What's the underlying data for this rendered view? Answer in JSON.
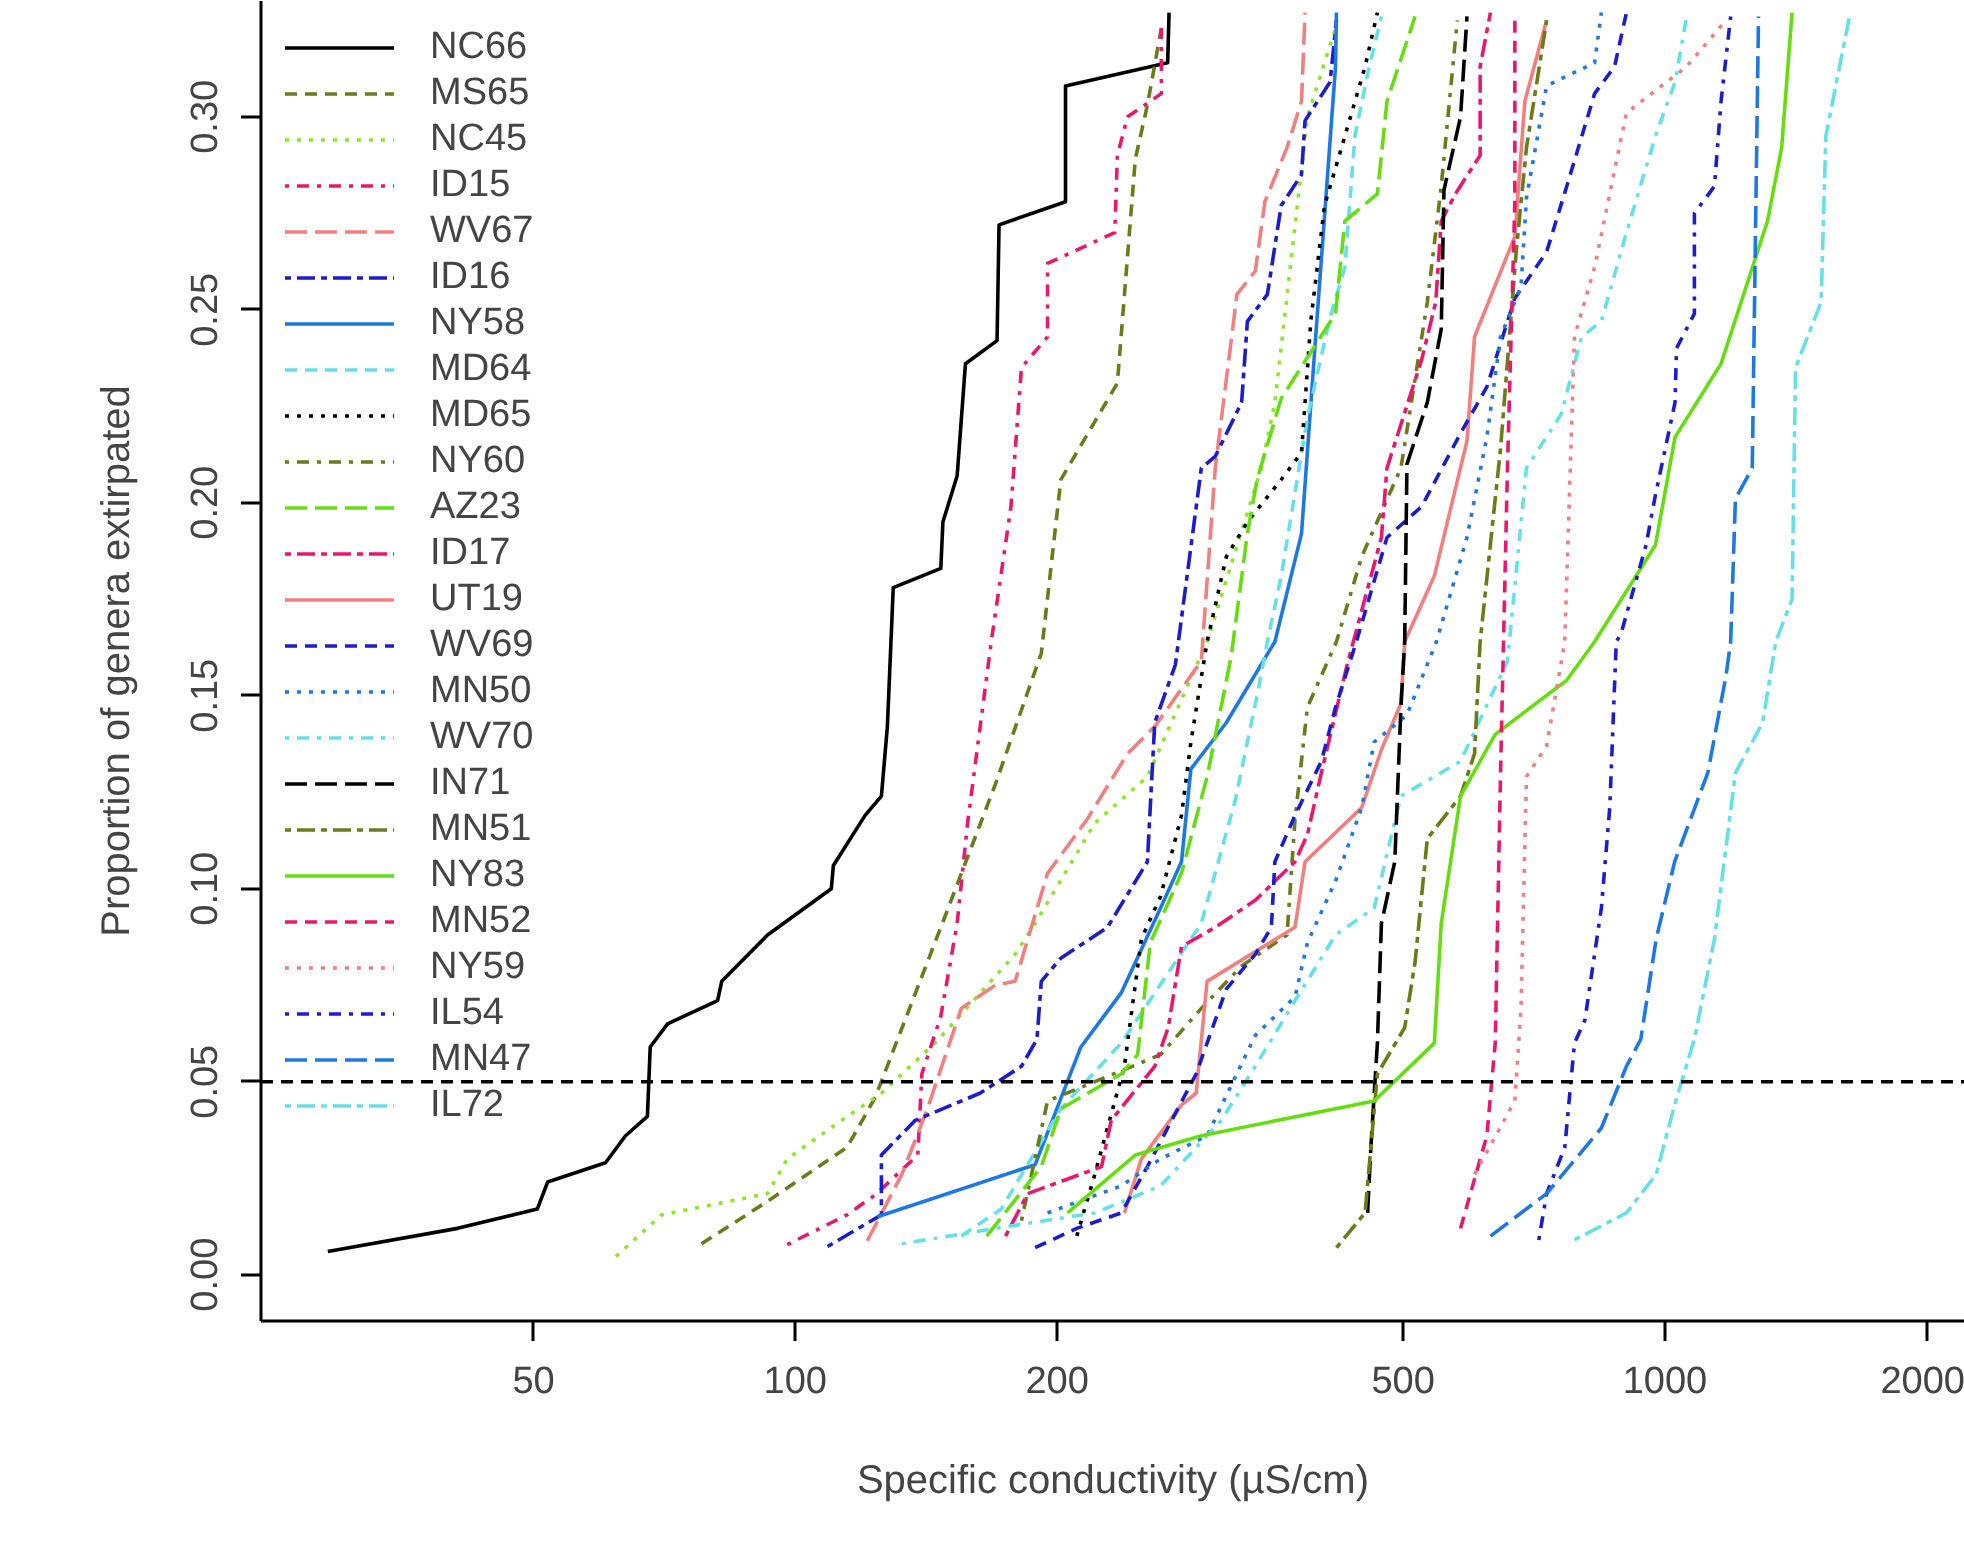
{
  "chart_data": {
    "type": "line",
    "xlabel": "Specific conductivity (µS/cm)",
    "ylabel": "Proportion of genera extirpated",
    "log": "x",
    "xlim": [
      24.3,
      2213
    ],
    "ylim": [
      -0.012,
      0.33
    ],
    "xticks": [
      50,
      100,
      200,
      500,
      1000,
      2000
    ],
    "yticks": [
      {
        "value": 0,
        "label": "0.00"
      },
      {
        "value": 0.05,
        "label": "0.05"
      },
      {
        "value": 0.1,
        "label": "0.10"
      },
      {
        "value": 0.15,
        "label": "0.15"
      },
      {
        "value": 0.2,
        "label": "0.20"
      },
      {
        "value": 0.25,
        "label": "0.25"
      },
      {
        "value": 0.3,
        "label": "0.30"
      }
    ],
    "grid": false,
    "legend": "top left",
    "ref_lines": [
      {
        "axis": "y",
        "value": 0.05,
        "label": null,
        "color": "#000000",
        "line_style": "dashed"
      }
    ],
    "series": [
      {
        "name": "NC66",
        "color": "#000000",
        "line_style": "solid",
        "x": [
          29.0,
          40.9,
          50.5,
          51.9,
          60.5,
          63.8,
          67.6,
          68.1,
          71.3,
          81.4,
          82.3,
          92.9,
          110,
          110.6,
          120.3,
          125.6,
          127.6,
          129.6,
          147,
          147.8,
          153.5,
          156.9,
          170.6,
          171.5,
          204.5,
          204.5,
          268,
          269
        ],
        "values": [
          0.006,
          0.012,
          0.017,
          0.024,
          0.029,
          0.036,
          0.041,
          0.059,
          0.065,
          0.071,
          0.076,
          0.088,
          0.1,
          0.106,
          0.119,
          0.124,
          0.142,
          0.178,
          0.183,
          0.195,
          0.207,
          0.236,
          0.242,
          0.272,
          0.278,
          0.308,
          0.314,
          0.327
        ]
      },
      {
        "name": "MS65",
        "color": "#6e7a1a",
        "line_style": "dashed",
        "x": [
          78,
          92.9,
          114.7,
          123.6,
          147,
          169.8,
          191.8,
          202,
          234.6,
          246,
          254,
          263.6
        ],
        "values": [
          0.008,
          0.019,
          0.033,
          0.046,
          0.09,
          0.127,
          0.161,
          0.206,
          0.231,
          0.289,
          0.303,
          0.323
        ]
      },
      {
        "name": "NC45",
        "color": "#8ee62a",
        "line_style": "dotted",
        "x": [
          62.2,
          70.2,
          92.9,
          97.9,
          114.7,
          125.6,
          144.8,
          179,
          188.7,
          221,
          254,
          297.5,
          343.5,
          356,
          388,
          418
        ],
        "values": [
          0.0047,
          0.0155,
          0.021,
          0.03,
          0.041,
          0.047,
          0.06,
          0.083,
          0.091,
          0.117,
          0.129,
          0.164,
          0.209,
          0.226,
          0.3,
          0.323
        ]
      },
      {
        "name": "ID15",
        "color": "#e6196e",
        "line_style": "dashdot",
        "x": [
          97.9,
          114.7,
          123.6,
          138.3,
          139.8,
          147,
          153.5,
          157.8,
          168,
          177,
          182,
          195,
          195,
          233,
          234.6,
          241,
          263.6,
          263.6
        ],
        "values": [
          0.0078,
          0.0155,
          0.0207,
          0.031,
          0.052,
          0.067,
          0.091,
          0.117,
          0.164,
          0.199,
          0.235,
          0.243,
          0.262,
          0.27,
          0.29,
          0.3,
          0.306,
          0.323
        ]
      },
      {
        "name": "WV67",
        "color": "#f08080",
        "line_style": "longdash",
        "x": [
          121,
          132.6,
          141.9,
          155.2,
          169.8,
          179,
          195,
          216.6,
          241,
          259,
          293,
          304,
          322,
          338,
          346.7,
          367.6,
          382,
          385.6
        ],
        "values": [
          0.0088,
          0.026,
          0.043,
          0.069,
          0.075,
          0.076,
          0.104,
          0.118,
          0.135,
          0.142,
          0.159,
          0.209,
          0.254,
          0.26,
          0.278,
          0.292,
          0.304,
          0.327
        ]
      },
      {
        "name": "ID16",
        "color": "#1c1cc8",
        "line_style": "twodash",
        "x": [
          108.9,
          125.6,
          125.6,
          137.4,
          163,
          182,
          189.6,
          191.8,
          202,
          228.5,
          254,
          259,
          273.5,
          293,
          304,
          326,
          331,
          349,
          362,
          382,
          385.6,
          412,
          419
        ],
        "values": [
          0.0073,
          0.0155,
          0.031,
          0.04,
          0.047,
          0.054,
          0.061,
          0.076,
          0.082,
          0.09,
          0.107,
          0.143,
          0.158,
          0.209,
          0.212,
          0.226,
          0.247,
          0.254,
          0.277,
          0.285,
          0.299,
          0.309,
          0.325
        ]
      },
      {
        "name": "NY58",
        "color": "#1f78e0",
        "line_style": "solid",
        "x": [
          124.3,
          188.7,
          213,
          237,
          263,
          278,
          285,
          313,
          356,
          382,
          396,
          418,
          419
        ],
        "values": [
          0.015,
          0.0285,
          0.059,
          0.073,
          0.095,
          0.107,
          0.131,
          0.143,
          0.164,
          0.192,
          0.241,
          0.313,
          0.327
        ]
      },
      {
        "name": "MD64",
        "color": "#66e0e8",
        "line_style": "dashed",
        "x": [
          155.2,
          172.5,
          202,
          237,
          293,
          320.6,
          339.6,
          349,
          362,
          388,
          412,
          428.5,
          440,
          455,
          472
        ],
        "values": [
          0.01,
          0.017,
          0.043,
          0.06,
          0.091,
          0.123,
          0.15,
          0.164,
          0.181,
          0.222,
          0.248,
          0.261,
          0.295,
          0.311,
          0.326
        ]
      },
      {
        "name": "MD65",
        "color": "#000000",
        "line_style": "dotted",
        "x": [
          210.7,
          221,
          228.5,
          239,
          250,
          263,
          278,
          285,
          297.5,
          313,
          331,
          362,
          382,
          391.5,
          406,
          428.5,
          452,
          467
        ],
        "values": [
          0.01,
          0.026,
          0.038,
          0.054,
          0.087,
          0.098,
          0.119,
          0.138,
          0.164,
          0.186,
          0.195,
          0.206,
          0.213,
          0.247,
          0.277,
          0.295,
          0.313,
          0.327
        ]
      },
      {
        "name": "NY60",
        "color": "#6e7a1a",
        "line_style": "dashdot",
        "x": [
          182,
          195,
          221,
          263,
          293,
          326,
          367.6,
          375.5,
          388,
          419,
          448,
          497,
          533,
          553,
          577
        ],
        "values": [
          0.014,
          0.045,
          0.05,
          0.057,
          0.069,
          0.08,
          0.088,
          0.118,
          0.147,
          0.164,
          0.186,
          0.209,
          0.252,
          0.282,
          0.325
        ]
      },
      {
        "name": "AZ23",
        "color": "#66dd11",
        "line_style": "longdash",
        "x": [
          166,
          191.8,
          202,
          237,
          247.5,
          256,
          278,
          297.5,
          317,
          331,
          339.6,
          362,
          418,
          428.5,
          467,
          479,
          516
        ],
        "values": [
          0.01,
          0.028,
          0.043,
          0.052,
          0.057,
          0.086,
          0.104,
          0.129,
          0.16,
          0.192,
          0.206,
          0.227,
          0.249,
          0.273,
          0.28,
          0.304,
          0.326
        ]
      },
      {
        "name": "ID17",
        "color": "#e6196e",
        "line_style": "twodash",
        "x": [
          174.5,
          185,
          225,
          230.8,
          259,
          268.4,
          278,
          304,
          338,
          375.5,
          388,
          402.6,
          431,
          472,
          479,
          525,
          545,
          553,
          574,
          613,
          613,
          630
        ],
        "values": [
          0.01,
          0.021,
          0.028,
          0.04,
          0.054,
          0.064,
          0.085,
          0.09,
          0.097,
          0.107,
          0.114,
          0.13,
          0.158,
          0.191,
          0.209,
          0.237,
          0.252,
          0.273,
          0.28,
          0.29,
          0.313,
          0.327
        ]
      },
      {
        "name": "UT19",
        "color": "#f08080",
        "line_style": "solid",
        "x": [
          239,
          250,
          278,
          289,
          297.5,
          375.5,
          385.6,
          448,
          472,
          497,
          502,
          543,
          592,
          604,
          672,
          690,
          731
        ],
        "values": [
          0.016,
          0.03,
          0.044,
          0.047,
          0.076,
          0.09,
          0.107,
          0.121,
          0.136,
          0.148,
          0.164,
          0.181,
          0.216,
          0.243,
          0.269,
          0.304,
          0.325
        ]
      },
      {
        "name": "WV69",
        "color": "#1c1cc8",
        "line_style": "dashed",
        "x": [
          188.7,
          210.7,
          237,
          254,
          289,
          313,
          338,
          352.7,
          356,
          375.5,
          402.6,
          418,
          441.7,
          479,
          525,
          582,
          624,
          672,
          731,
          771,
          830,
          875,
          903
        ],
        "values": [
          0.007,
          0.012,
          0.016,
          0.028,
          0.052,
          0.074,
          0.083,
          0.09,
          0.107,
          0.119,
          0.133,
          0.147,
          0.164,
          0.191,
          0.199,
          0.218,
          0.23,
          0.253,
          0.265,
          0.282,
          0.306,
          0.313,
          0.327
        ]
      },
      {
        "name": "MN50",
        "color": "#1f78e0",
        "line_style": "dotted",
        "x": [
          195,
          237,
          263,
          297.5,
          338,
          375.5,
          388,
          418,
          448,
          463,
          505,
          546,
          592,
          624,
          647,
          683,
          693,
          731,
          830,
          845
        ],
        "values": [
          0.016,
          0.023,
          0.03,
          0.036,
          0.062,
          0.072,
          0.086,
          0.102,
          0.121,
          0.138,
          0.145,
          0.164,
          0.191,
          0.217,
          0.243,
          0.256,
          0.279,
          0.308,
          0.314,
          0.327
        ]
      },
      {
        "name": "WV70",
        "color": "#66e0e8",
        "line_style": "dashdot",
        "x": [
          132.6,
          169.8,
          221,
          263,
          309,
          338,
          375.5,
          418,
          463,
          497,
          582,
          659,
          693,
          760,
          802,
          845,
          903,
          975,
          1027,
          1059
        ],
        "values": [
          0.008,
          0.012,
          0.016,
          0.023,
          0.04,
          0.054,
          0.071,
          0.088,
          0.095,
          0.124,
          0.133,
          0.159,
          0.209,
          0.223,
          0.243,
          0.247,
          0.27,
          0.295,
          0.309,
          0.326
        ]
      },
      {
        "name": "IN71",
        "color": "#000000",
        "line_style": "longdash",
        "x": [
          455,
          459,
          467,
          472,
          489,
          497,
          502,
          505,
          533,
          553,
          557,
          582,
          592
        ],
        "values": [
          0.016,
          0.033,
          0.06,
          0.091,
          0.107,
          0.147,
          0.164,
          0.21,
          0.226,
          0.245,
          0.281,
          0.3,
          0.326
        ]
      },
      {
        "name": "MN51",
        "color": "#6e7a1a",
        "line_style": "twodash",
        "x": [
          419,
          452,
          459,
          467,
          502,
          516,
          533,
          582,
          604,
          613,
          647,
          675,
          693,
          731
        ],
        "values": [
          0.007,
          0.016,
          0.033,
          0.052,
          0.064,
          0.081,
          0.113,
          0.124,
          0.135,
          0.164,
          0.214,
          0.266,
          0.292,
          0.325
        ]
      },
      {
        "name": "NY83",
        "color": "#66dd11",
        "line_style": "solid",
        "x": [
          205.6,
          246,
          293,
          463,
          543,
          553,
          582,
          638,
          771,
          830,
          975,
          1027,
          1160,
          1312,
          1362,
          1400
        ],
        "values": [
          0.016,
          0.031,
          0.036,
          0.045,
          0.06,
          0.091,
          0.124,
          0.14,
          0.154,
          0.164,
          0.189,
          0.217,
          0.236,
          0.273,
          0.292,
          0.327
        ]
      },
      {
        "name": "MN52",
        "color": "#e6196e",
        "line_style": "dashed",
        "x": [
          582,
          624,
          638,
          647,
          659,
          672,
          672
        ],
        "values": [
          0.012,
          0.036,
          0.06,
          0.13,
          0.209,
          0.278,
          0.326
        ]
      },
      {
        "name": "NY59",
        "color": "#f08080",
        "line_style": "dotted",
        "x": [
          604,
          672,
          683,
          693,
          731,
          767,
          787,
          830,
          903,
          1059,
          1175
        ],
        "values": [
          0.026,
          0.045,
          0.069,
          0.129,
          0.137,
          0.164,
          0.243,
          0.261,
          0.301,
          0.313,
          0.325
        ]
      },
      {
        "name": "IL54",
        "color": "#1c1cc8",
        "line_style": "dashdot",
        "x": [
          716,
          731,
          767,
          787,
          809,
          845,
          864,
          879,
          890,
          951,
          975,
          1027,
          1031,
          1081,
          1081,
          1140,
          1160,
          1190
        ],
        "values": [
          0.009,
          0.021,
          0.033,
          0.06,
          0.066,
          0.095,
          0.121,
          0.164,
          0.166,
          0.189,
          0.202,
          0.226,
          0.24,
          0.249,
          0.275,
          0.282,
          0.304,
          0.326
        ]
      },
      {
        "name": "MN47",
        "color": "#1f78e0",
        "line_style": "longdash",
        "x": [
          630,
          731,
          845,
          903,
          938,
          977,
          1026,
          1120,
          1175,
          1190,
          1205,
          1260,
          1271,
          1281
        ],
        "values": [
          0.01,
          0.021,
          0.038,
          0.054,
          0.061,
          0.087,
          0.107,
          0.13,
          0.155,
          0.164,
          0.201,
          0.209,
          0.271,
          0.326
        ]
      },
      {
        "name": "IL72",
        "color": "#66e0e8",
        "line_style": "twodash",
        "x": [
          787,
          903,
          977,
          1026,
          1081,
          1140,
          1205,
          1295,
          1341,
          1400,
          1413,
          1512,
          1531,
          1630
        ],
        "values": [
          0.009,
          0.016,
          0.026,
          0.044,
          0.061,
          0.087,
          0.13,
          0.143,
          0.164,
          0.175,
          0.235,
          0.252,
          0.295,
          0.326
        ]
      }
    ]
  }
}
